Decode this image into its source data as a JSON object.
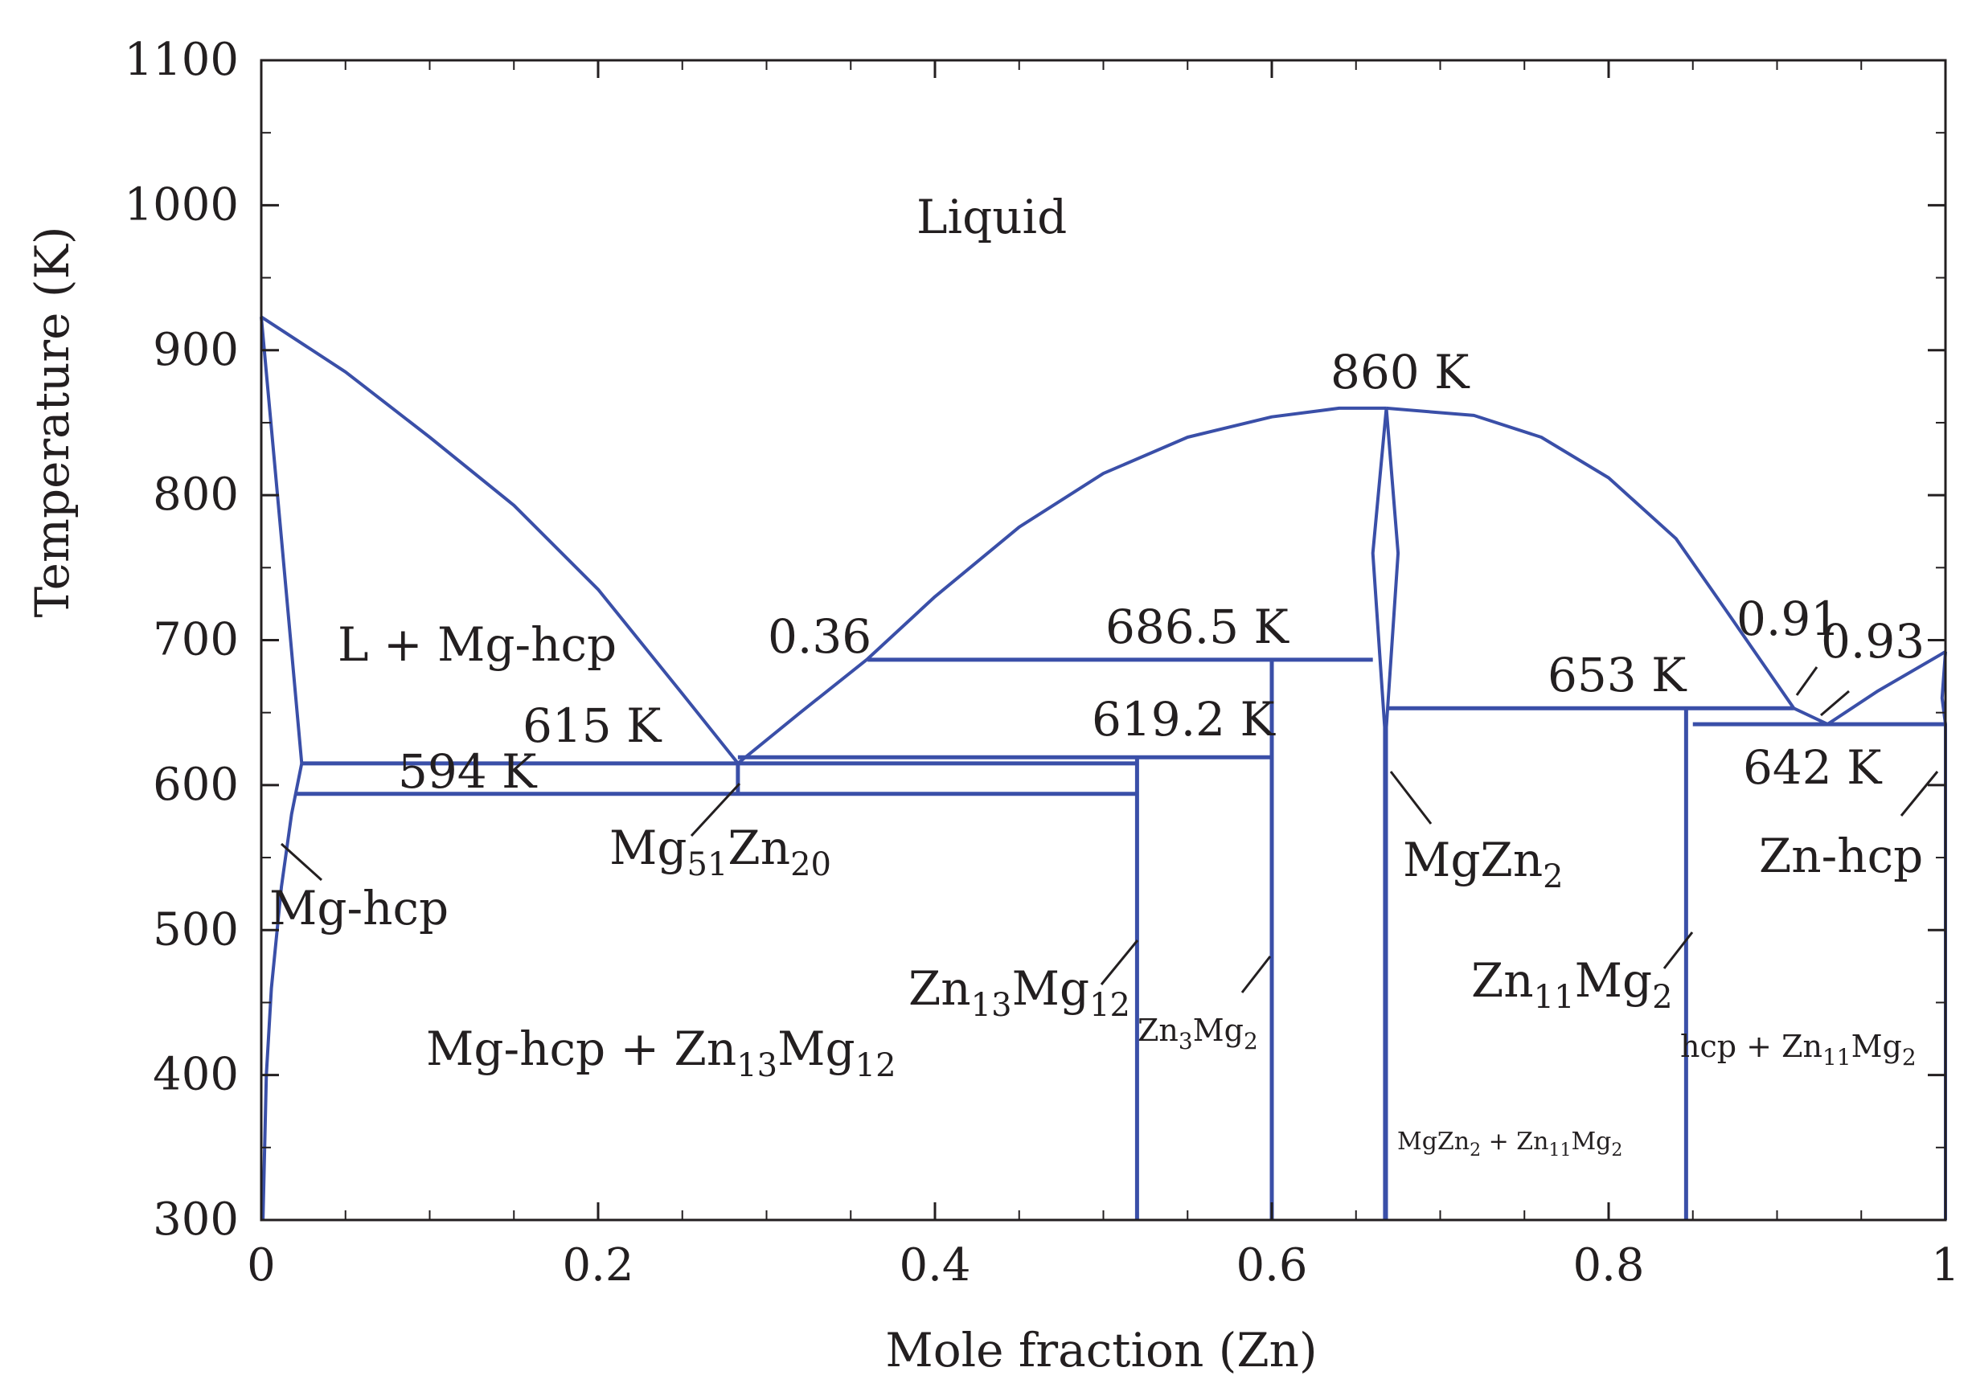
{
  "chart_data": {
    "type": "line",
    "subtype": "binary phase diagram",
    "xlabel": "Mole fraction (Zn)",
    "ylabel": "Temperature (K)",
    "xlim": [
      0,
      1
    ],
    "ylim": [
      300,
      1100
    ],
    "x_ticks": [
      "0",
      "0.2",
      "0.4",
      "0.6",
      "0.8",
      "1"
    ],
    "y_ticks": [
      "300",
      "400",
      "500",
      "600",
      "700",
      "800",
      "900",
      "1000",
      "1100"
    ],
    "grid": false,
    "line_color": "#3a4fa8",
    "curves": [
      {
        "id": "liquidus-mg",
        "points": [
          [
            0,
            923
          ],
          [
            0.05,
            885
          ],
          [
            0.1,
            840
          ],
          [
            0.15,
            793
          ],
          [
            0.2,
            735
          ],
          [
            0.25,
            663
          ],
          [
            0.283,
            615
          ]
        ]
      },
      {
        "id": "liquidus-central-left",
        "points": [
          [
            0.283,
            615
          ],
          [
            0.32,
            650
          ],
          [
            0.36,
            687
          ],
          [
            0.4,
            730
          ],
          [
            0.45,
            778
          ],
          [
            0.5,
            815
          ],
          [
            0.55,
            840
          ],
          [
            0.6,
            854
          ],
          [
            0.64,
            860
          ],
          [
            0.668,
            860
          ]
        ]
      },
      {
        "id": "liquidus-central-right",
        "points": [
          [
            0.668,
            860
          ],
          [
            0.72,
            855
          ],
          [
            0.76,
            840
          ],
          [
            0.8,
            812
          ],
          [
            0.84,
            770
          ],
          [
            0.87,
            720
          ],
          [
            0.91,
            653
          ],
          [
            0.93,
            642
          ]
        ]
      },
      {
        "id": "liquidus-zn",
        "points": [
          [
            0.93,
            642
          ],
          [
            0.96,
            665
          ],
          [
            1.0,
            692
          ]
        ]
      },
      {
        "id": "mg-hcp-solidus",
        "points": [
          [
            0,
            923
          ],
          [
            0.012,
            770
          ],
          [
            0.024,
            615
          ]
        ]
      },
      {
        "id": "mg-hcp-solvus",
        "points": [
          [
            0.024,
            615
          ],
          [
            0.018,
            580
          ],
          [
            0.012,
            530
          ],
          [
            0.006,
            460
          ],
          [
            0.003,
            400
          ],
          [
            0.001,
            300
          ]
        ]
      },
      {
        "id": "mgzn2-left",
        "points": [
          [
            0.668,
            860
          ],
          [
            0.66,
            760
          ],
          [
            0.667,
            640
          ],
          [
            0.667,
            300
          ]
        ]
      },
      {
        "id": "mgzn2-right",
        "points": [
          [
            0.668,
            860
          ],
          [
            0.675,
            760
          ],
          [
            0.668,
            640
          ],
          [
            0.668,
            300
          ]
        ]
      },
      {
        "id": "zn-hcp-boundary",
        "points": [
          [
            1.0,
            692
          ],
          [
            0.998,
            660
          ],
          [
            1.0,
            642
          ],
          [
            1.0,
            300
          ]
        ]
      }
    ],
    "invariant_lines": [
      {
        "temperature": 686.5,
        "x_start": 0.36,
        "x_end": 0.66
      },
      {
        "temperature": 619.2,
        "x_start": 0.283,
        "x_end": 0.6
      },
      {
        "temperature": 615,
        "x_start": 0.024,
        "x_end": 0.52
      },
      {
        "temperature": 594,
        "x_start": 0.02,
        "x_end": 0.52
      },
      {
        "temperature": 653,
        "x_start": 0.668,
        "x_end": 0.91
      },
      {
        "temperature": 642,
        "x_start": 0.85,
        "x_end": 1.0
      }
    ],
    "compound_lines": [
      {
        "x": 0.283,
        "t_min": 594,
        "t_max": 615
      },
      {
        "x": 0.52,
        "t_min": 300,
        "t_max": 619.2
      },
      {
        "x": 0.6,
        "t_min": 300,
        "t_max": 686.5
      },
      {
        "x": 0.846,
        "t_min": 300,
        "t_max": 653
      }
    ],
    "annotations": [
      {
        "id": "liquid",
        "text": "Liquid"
      },
      {
        "id": "l-mghcp",
        "text": "L + Mg-hcp"
      },
      {
        "id": "t860",
        "text": "860 K"
      },
      {
        "id": "x036",
        "text": "0.36"
      },
      {
        "id": "t6865",
        "text": "686.5 K"
      },
      {
        "id": "t615",
        "text": "615 K"
      },
      {
        "id": "t594",
        "text": "594 K"
      },
      {
        "id": "t6192",
        "text": "619.2 K"
      },
      {
        "id": "t653",
        "text": "653 K"
      },
      {
        "id": "x091",
        "text": "0.91"
      },
      {
        "id": "x093",
        "text": "0.93"
      },
      {
        "id": "t642",
        "text": "642 K"
      },
      {
        "id": "mghcp",
        "text": "Mg-hcp"
      },
      {
        "id": "mg51zn20",
        "text": "Mg51Zn20"
      },
      {
        "id": "mgzn2",
        "text": "MgZn2"
      },
      {
        "id": "znhcp",
        "text": "Zn-hcp"
      },
      {
        "id": "zn13mg12",
        "text": "Zn13Mg12"
      },
      {
        "id": "zn3mg2",
        "text": "Zn3Mg2"
      },
      {
        "id": "zn11mg2",
        "text": "Zn11Mg2"
      },
      {
        "id": "mghcp-zn13mg12",
        "text": "Mg-hcp + Zn13Mg12"
      },
      {
        "id": "hcp-zn11mg2",
        "text": "hcp + Zn11Mg2"
      },
      {
        "id": "mgzn2-zn11mg2",
        "text": "MgZn2 + Zn11Mg2"
      }
    ]
  }
}
